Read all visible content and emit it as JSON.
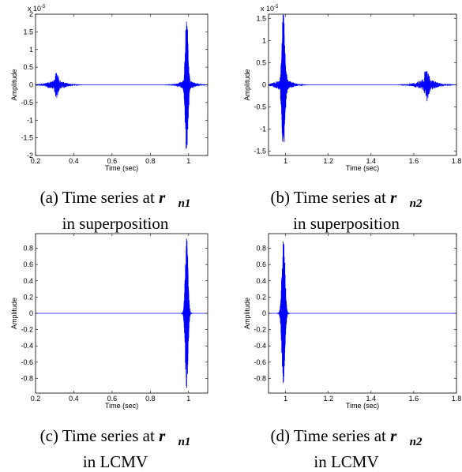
{
  "chart_data": [
    {
      "type": "line",
      "caption": {
        "prefix": "(a) Time series at",
        "vector": "r",
        "subscript": "n1",
        "line2": "in superposition"
      },
      "xlabel": "Time (sec)",
      "ylabel": "Amplitude",
      "exponent": "x 10",
      "exponent_power": "-5",
      "xlim": [
        0.2,
        1.1
      ],
      "ylim": [
        -2,
        2
      ],
      "xticks": [
        "0.2",
        "0.4",
        "0.6",
        "0.8",
        "1"
      ],
      "yticks": [
        "2",
        "1.5",
        "1",
        "0.5",
        "0",
        "-0.5",
        "-1",
        "-1.5",
        "-2"
      ],
      "series": [
        {
          "color": "#0000ff",
          "bursts": [
            {
              "t": 0.31,
              "amplitude": 0.3,
              "width": 0.012
            },
            {
              "t": 0.99,
              "amplitude": 1.95,
              "width": 0.01
            }
          ],
          "noise": 0.04
        }
      ]
    },
    {
      "type": "line",
      "caption": {
        "prefix": "(b) Time series at",
        "vector": "r",
        "subscript": "n2",
        "line2": "in superposition"
      },
      "xlabel": "Time (sec)",
      "ylabel": "Amplitude",
      "exponent": "x 10",
      "exponent_power": "-5",
      "xlim": [
        0.92,
        1.8
      ],
      "ylim": [
        -1.6,
        1.6
      ],
      "xticks": [
        "1",
        "1.2",
        "1.4",
        "1.6",
        "1.8"
      ],
      "yticks": [
        "1.5",
        "1",
        "0.5",
        "0",
        "-0.5",
        "-1",
        "-1.5"
      ],
      "series": [
        {
          "color": "#0000ff",
          "bursts": [
            {
              "t": 0.99,
              "amplitude": 1.58,
              "width": 0.01
            },
            {
              "t": 1.66,
              "amplitude": 0.32,
              "width": 0.012
            }
          ],
          "noise": 0.04
        }
      ]
    },
    {
      "type": "line",
      "caption": {
        "prefix": "(c) Time series at",
        "vector": "r",
        "subscript": "n1",
        "line2": "in LCMV"
      },
      "xlabel": "Time (sec)",
      "ylabel": "Amplitude",
      "xlim": [
        0.2,
        1.1
      ],
      "ylim": [
        -0.98,
        0.98
      ],
      "xticks": [
        "0.2",
        "0.4",
        "0.6",
        "0.8",
        "1"
      ],
      "yticks": [
        "0.8",
        "0.6",
        "0.4",
        "0.2",
        "0",
        "-0.2",
        "-0.4",
        "-0.6",
        "-0.8"
      ],
      "series": [
        {
          "color": "#0000ff",
          "bursts": [
            {
              "t": 0.99,
              "amplitude": 0.95,
              "width": 0.01
            }
          ],
          "noise": 0.0
        }
      ]
    },
    {
      "type": "line",
      "caption": {
        "prefix": "(d) Time series at",
        "vector": "r",
        "subscript": "n2",
        "line2": "in LCMV"
      },
      "xlabel": "Time (sec)",
      "ylabel": "Amplitude",
      "xlim": [
        0.92,
        1.8
      ],
      "ylim": [
        -0.98,
        0.98
      ],
      "xticks": [
        "1",
        "1.2",
        "1.4",
        "1.6",
        "1.8"
      ],
      "yticks": [
        "0.8",
        "0.6",
        "0.4",
        "0.2",
        "0",
        "-0.2",
        "-0.4",
        "-0.6",
        "-0.8"
      ],
      "series": [
        {
          "color": "#0000ff",
          "bursts": [
            {
              "t": 0.99,
              "amplitude": 0.95,
              "width": 0.01
            }
          ],
          "noise": 0.0
        }
      ]
    }
  ]
}
